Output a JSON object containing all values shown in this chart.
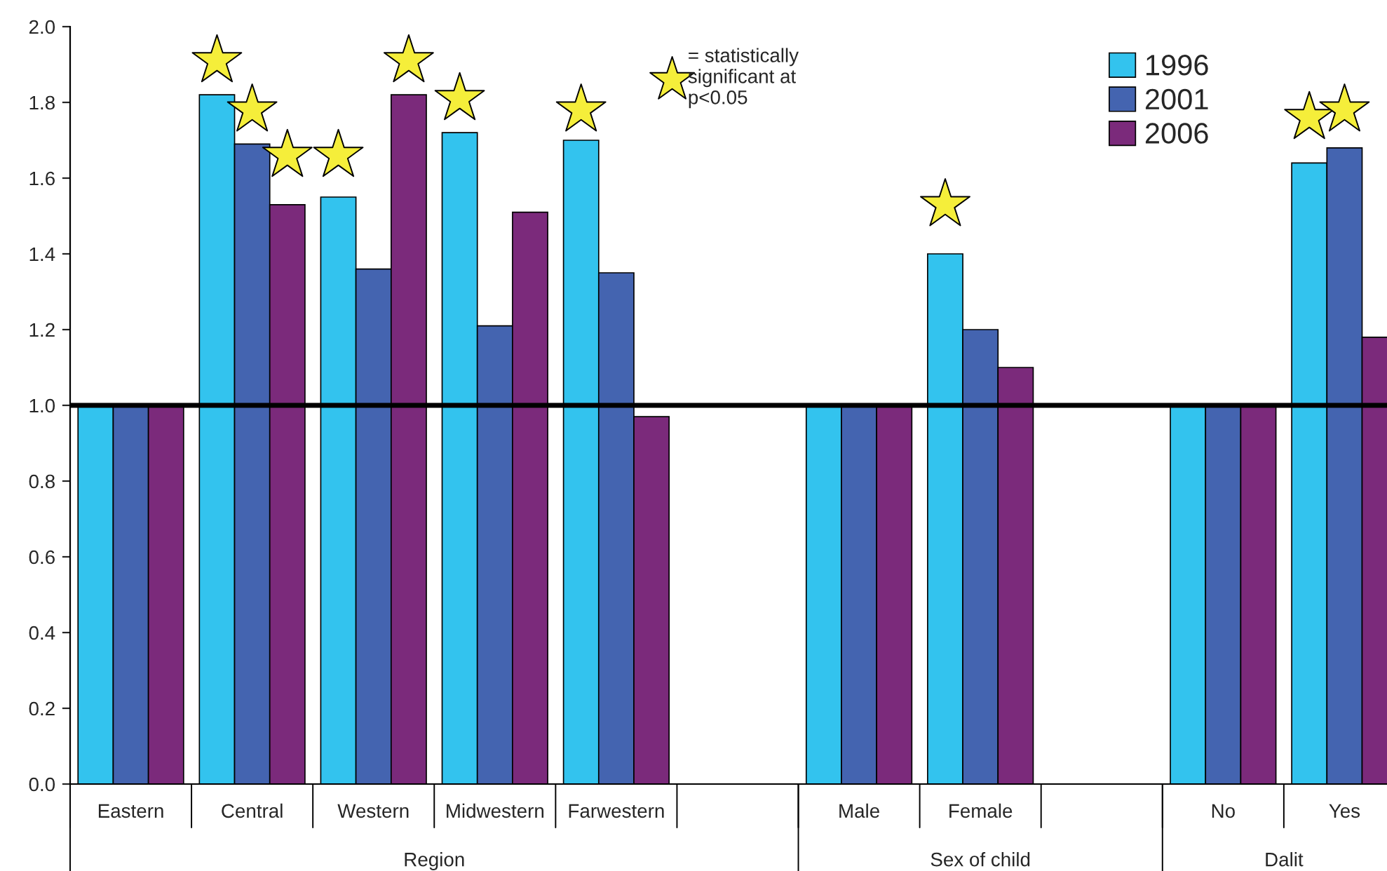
{
  "chart_data": {
    "type": "bar",
    "categories": [
      "Eastern",
      "Central",
      "Western",
      "Midwestern",
      "Farwestern",
      null,
      "Male",
      "Female",
      null,
      "No",
      "Yes"
    ],
    "series": [
      {
        "name": "1996",
        "color": "#33c3ee",
        "values": [
          1.0,
          1.82,
          1.55,
          1.72,
          1.7,
          null,
          1.0,
          1.4,
          null,
          1.0,
          1.64
        ]
      },
      {
        "name": "2001",
        "color": "#4464b0",
        "values": [
          1.0,
          1.69,
          1.36,
          1.21,
          1.35,
          null,
          1.0,
          1.2,
          null,
          1.0,
          1.68
        ]
      },
      {
        "name": "2006",
        "color": "#7b2a7b",
        "values": [
          1.0,
          1.53,
          1.82,
          1.51,
          0.97,
          null,
          1.0,
          1.1,
          null,
          1.0,
          1.18
        ]
      },
      {
        "type": "scatter",
        "name": "= statistically\nsignificant at\np<0.05",
        "color": "#f5ee3a",
        "values": [
          null,
          1.91,
          1.66,
          1.81,
          1.78,
          null,
          null,
          1.53,
          null,
          null,
          1.76
        ]
      },
      {
        "type": "scatter",
        "color": "#f5ee3a",
        "values": [
          null,
          1.78,
          null,
          null,
          null,
          null,
          null,
          null,
          null,
          null,
          1.78
        ]
      },
      {
        "type": "scatter",
        "color": "#f5ee3a",
        "values": [
          null,
          1.66,
          1.91,
          null,
          null,
          null,
          null,
          null,
          null,
          null,
          null
        ]
      }
    ],
    "ylim": [
      0,
      2.0
    ],
    "yticks": [
      {
        "value": 0,
        "label": "0.0"
      },
      {
        "value": 0.2,
        "label": "0.2"
      },
      {
        "value": 0.4,
        "label": "0.4"
      },
      {
        "value": 0.6,
        "label": "0.6"
      },
      {
        "value": 0.8,
        "label": "0.8"
      },
      {
        "value": 1.0,
        "label": "1.0"
      },
      {
        "value": 1.2,
        "label": "1.2"
      },
      {
        "value": 1.4,
        "label": "1.4"
      },
      {
        "value": 1.6,
        "label": "1.6"
      },
      {
        "value": 1.8,
        "label": "1.8"
      },
      {
        "value": 2.0,
        "label": "2.0"
      }
    ],
    "ref_lines": [
      {
        "axis": "y",
        "value": 1.0,
        "color": "#000000"
      }
    ],
    "annotations": [
      "Region",
      "Sex of child",
      "Dalit"
    ],
    "marker": "star",
    "grid": false,
    "legend": "top right"
  }
}
